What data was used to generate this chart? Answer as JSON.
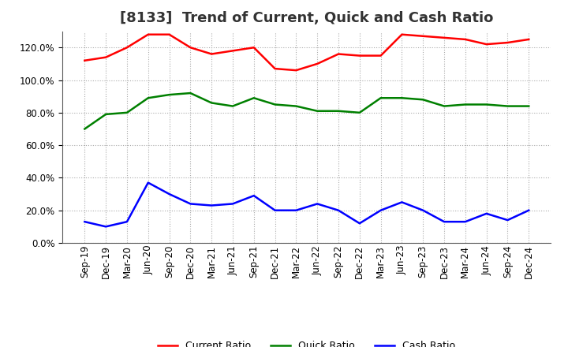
{
  "title": "[8133]  Trend of Current, Quick and Cash Ratio",
  "x_labels": [
    "Sep-19",
    "Dec-19",
    "Mar-20",
    "Jun-20",
    "Sep-20",
    "Dec-20",
    "Mar-21",
    "Jun-21",
    "Sep-21",
    "Dec-21",
    "Mar-22",
    "Jun-22",
    "Sep-22",
    "Dec-22",
    "Mar-23",
    "Jun-23",
    "Sep-23",
    "Dec-23",
    "Mar-24",
    "Jun-24",
    "Sep-24",
    "Dec-24"
  ],
  "current_ratio": [
    112,
    114,
    120,
    128,
    128,
    120,
    116,
    118,
    120,
    107,
    106,
    110,
    116,
    115,
    115,
    128,
    127,
    126,
    125,
    122,
    123,
    125
  ],
  "quick_ratio": [
    70,
    79,
    80,
    89,
    91,
    92,
    86,
    84,
    89,
    85,
    84,
    81,
    81,
    80,
    89,
    89,
    88,
    84,
    85,
    85,
    84,
    84
  ],
  "cash_ratio": [
    13,
    10,
    13,
    37,
    30,
    24,
    23,
    24,
    29,
    20,
    20,
    24,
    20,
    12,
    20,
    25,
    20,
    13,
    13,
    18,
    14,
    20
  ],
  "current_color": "#FF0000",
  "quick_color": "#008000",
  "cash_color": "#0000FF",
  "ylim": [
    0,
    130
  ],
  "yticks": [
    0,
    20,
    40,
    60,
    80,
    100,
    120
  ],
  "background_color": "#FFFFFF",
  "grid_color": "#AAAAAA",
  "title_fontsize": 13,
  "legend_fontsize": 9,
  "tick_fontsize": 8.5
}
